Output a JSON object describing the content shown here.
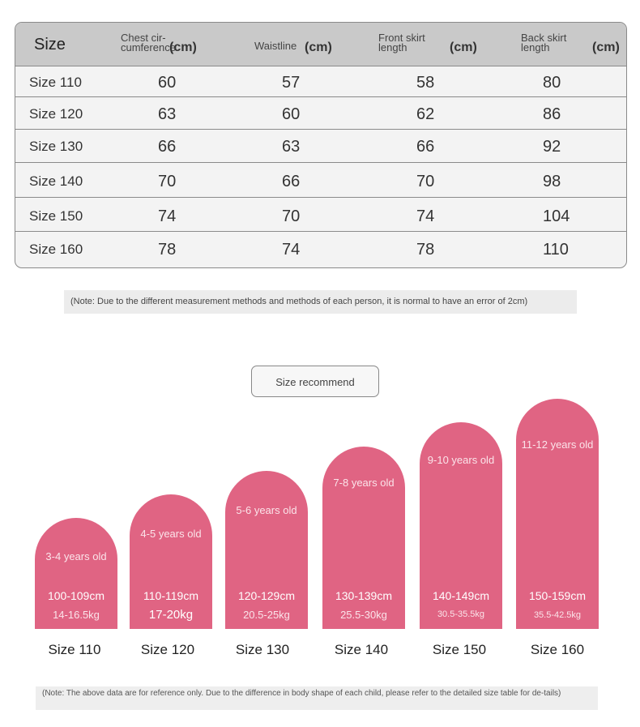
{
  "table": {
    "headers": {
      "size": "Size",
      "chest": "Chest cir-cumference",
      "chest_unit": "(cm)",
      "waist": "Waistline",
      "waist_unit": "(cm)",
      "front": "Front skirt length",
      "front_unit": "(cm)",
      "back": "Back skirt length",
      "back_unit": "(cm)"
    },
    "rows": [
      {
        "size": "Size 110",
        "chest": "60",
        "waist": "57",
        "front": "58",
        "back": "80"
      },
      {
        "size": "Size 120",
        "chest": "63",
        "waist": "60",
        "front": "62",
        "back": "86"
      },
      {
        "size": "Size 130",
        "chest": "66",
        "waist": "63",
        "front": "66",
        "back": "92"
      },
      {
        "size": "Size 140",
        "chest": "70",
        "waist": "66",
        "front": "70",
        "back": "98"
      },
      {
        "size": "Size 150",
        "chest": "74",
        "waist": "70",
        "front": "74",
        "back": "104"
      },
      {
        "size": "Size 160",
        "chest": "78",
        "waist": "74",
        "front": "78",
        "back": "110"
      }
    ]
  },
  "note_top": "(Note: Due to the different measurement methods and methods of each person, it is normal to have an error of 2cm)",
  "recommend_title": "Size recommend",
  "recommend": [
    {
      "age": "3-4 years old",
      "height": "100-109cm",
      "weight": "14-16.5kg",
      "size": "Size 110"
    },
    {
      "age": "4-5 years old",
      "height": "110-119cm",
      "weight": "17-20kg",
      "size": "Size 120"
    },
    {
      "age": "5-6 years old",
      "height": "120-129cm",
      "weight": "20.5-25kg",
      "size": "Size 130"
    },
    {
      "age": "7-8 years old",
      "height": "130-139cm",
      "weight": "25.5-30kg",
      "size": "Size 140"
    },
    {
      "age": "9-10 years old",
      "height": "140-149cm",
      "weight": "30.5-35.5kg",
      "size": "Size 150"
    },
    {
      "age": "11-12 years old",
      "height": "150-159cm",
      "weight": "35.5-42.5kg",
      "size": "Size 160"
    }
  ],
  "note_bottom": "(Note: The above data are for reference only. Due to the difference in body shape of each child, please refer to the detailed size table for de-tails)",
  "colors": {
    "arch": "#e06483",
    "header": "#c9c9c9",
    "row": "#f3f3f3"
  }
}
